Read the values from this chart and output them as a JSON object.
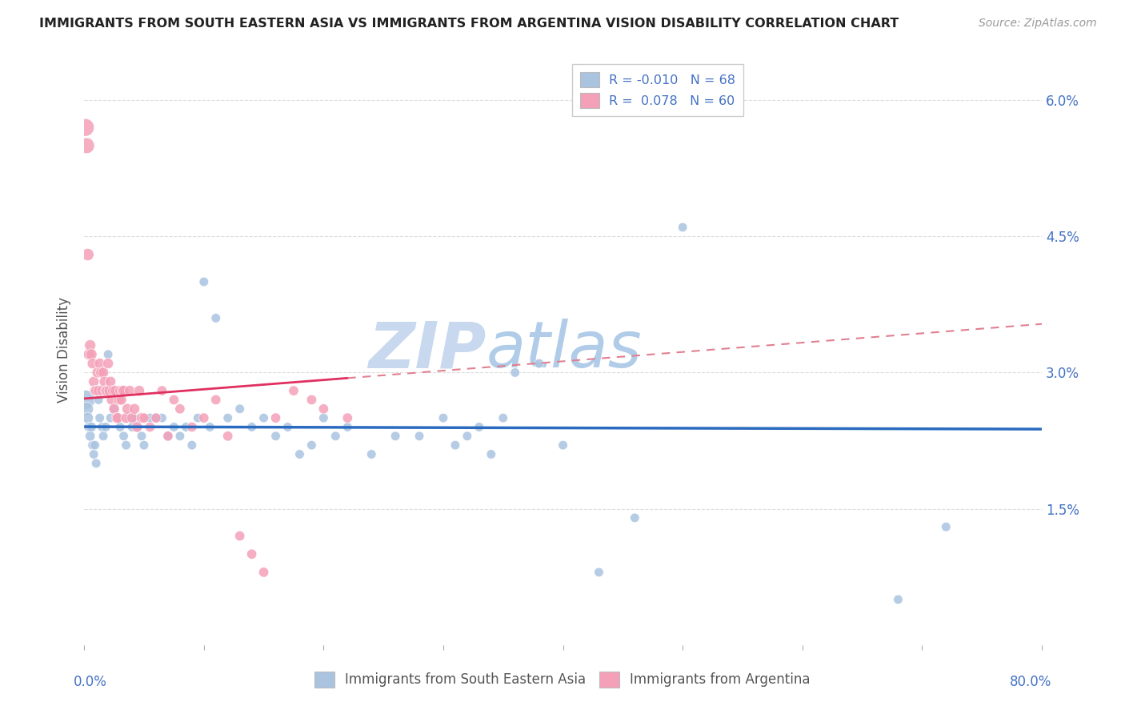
{
  "title": "IMMIGRANTS FROM SOUTH EASTERN ASIA VS IMMIGRANTS FROM ARGENTINA VISION DISABILITY CORRELATION CHART",
  "source": "Source: ZipAtlas.com",
  "ylabel": "Vision Disability",
  "yticks": [
    0.0,
    0.015,
    0.03,
    0.045,
    0.06
  ],
  "ytick_labels": [
    "",
    "1.5%",
    "3.0%",
    "4.5%",
    "6.0%"
  ],
  "xlim": [
    0.0,
    0.8
  ],
  "ylim": [
    0.0,
    0.065
  ],
  "blue_R": -0.01,
  "blue_N": 68,
  "pink_R": 0.078,
  "pink_N": 60,
  "blue_color": "#aac4e0",
  "pink_color": "#f4a0b8",
  "blue_line_color": "#2a6abf",
  "pink_line_color": "#e03060",
  "pink_dash_color": "#e08090",
  "watermark_zip": "ZIP",
  "watermark_atlas": "atlas",
  "watermark_color_zip": "#c8d8ee",
  "watermark_color_atlas": "#b0cce8",
  "grid_color": "#dddddd",
  "background_color": "#ffffff",
  "tick_color": "#4472c4",
  "legend_label_blue": "Immigrants from South Eastern Asia",
  "legend_label_pink": "Immigrants from Argentina",
  "blue_scatter_x": [
    0.001,
    0.002,
    0.003,
    0.004,
    0.005,
    0.006,
    0.007,
    0.008,
    0.009,
    0.01,
    0.012,
    0.013,
    0.015,
    0.016,
    0.018,
    0.02,
    0.022,
    0.025,
    0.028,
    0.03,
    0.033,
    0.035,
    0.038,
    0.04,
    0.042,
    0.045,
    0.048,
    0.05,
    0.055,
    0.06,
    0.065,
    0.07,
    0.075,
    0.08,
    0.085,
    0.09,
    0.095,
    0.1,
    0.105,
    0.11,
    0.12,
    0.13,
    0.14,
    0.15,
    0.16,
    0.17,
    0.18,
    0.19,
    0.2,
    0.21,
    0.22,
    0.24,
    0.26,
    0.28,
    0.3,
    0.31,
    0.32,
    0.33,
    0.34,
    0.35,
    0.36,
    0.38,
    0.4,
    0.43,
    0.46,
    0.5,
    0.68,
    0.72
  ],
  "blue_scatter_y": [
    0.027,
    0.026,
    0.025,
    0.024,
    0.023,
    0.024,
    0.022,
    0.021,
    0.022,
    0.02,
    0.027,
    0.025,
    0.024,
    0.023,
    0.024,
    0.032,
    0.025,
    0.026,
    0.025,
    0.024,
    0.023,
    0.022,
    0.025,
    0.024,
    0.025,
    0.024,
    0.023,
    0.022,
    0.025,
    0.025,
    0.025,
    0.023,
    0.024,
    0.023,
    0.024,
    0.022,
    0.025,
    0.04,
    0.024,
    0.036,
    0.025,
    0.026,
    0.024,
    0.025,
    0.023,
    0.024,
    0.021,
    0.022,
    0.025,
    0.023,
    0.024,
    0.021,
    0.023,
    0.023,
    0.025,
    0.022,
    0.023,
    0.024,
    0.021,
    0.025,
    0.03,
    0.031,
    0.022,
    0.008,
    0.014,
    0.046,
    0.005,
    0.013
  ],
  "blue_scatter_s": [
    300,
    150,
    100,
    80,
    80,
    80,
    70,
    70,
    70,
    70,
    70,
    70,
    70,
    70,
    70,
    70,
    70,
    70,
    70,
    70,
    70,
    70,
    70,
    70,
    70,
    70,
    70,
    70,
    70,
    70,
    70,
    70,
    70,
    70,
    70,
    70,
    70,
    70,
    70,
    70,
    70,
    70,
    70,
    70,
    70,
    70,
    70,
    70,
    70,
    70,
    70,
    70,
    70,
    70,
    70,
    70,
    70,
    70,
    70,
    70,
    70,
    70,
    70,
    70,
    70,
    70,
    70,
    70
  ],
  "pink_scatter_x": [
    0.001,
    0.002,
    0.003,
    0.004,
    0.005,
    0.006,
    0.007,
    0.008,
    0.009,
    0.01,
    0.011,
    0.012,
    0.013,
    0.014,
    0.015,
    0.016,
    0.017,
    0.018,
    0.019,
    0.02,
    0.021,
    0.022,
    0.023,
    0.024,
    0.025,
    0.026,
    0.027,
    0.028,
    0.029,
    0.03,
    0.031,
    0.032,
    0.033,
    0.035,
    0.036,
    0.038,
    0.04,
    0.042,
    0.044,
    0.046,
    0.048,
    0.05,
    0.055,
    0.06,
    0.065,
    0.07,
    0.075,
    0.08,
    0.09,
    0.1,
    0.11,
    0.12,
    0.13,
    0.14,
    0.15,
    0.16,
    0.175,
    0.19,
    0.2,
    0.22
  ],
  "pink_scatter_y": [
    0.057,
    0.055,
    0.043,
    0.032,
    0.033,
    0.032,
    0.031,
    0.029,
    0.028,
    0.028,
    0.03,
    0.028,
    0.031,
    0.03,
    0.028,
    0.03,
    0.029,
    0.028,
    0.028,
    0.031,
    0.028,
    0.029,
    0.027,
    0.028,
    0.026,
    0.028,
    0.025,
    0.025,
    0.027,
    0.028,
    0.027,
    0.028,
    0.028,
    0.025,
    0.026,
    0.028,
    0.025,
    0.026,
    0.024,
    0.028,
    0.025,
    0.025,
    0.024,
    0.025,
    0.028,
    0.023,
    0.027,
    0.026,
    0.024,
    0.025,
    0.027,
    0.023,
    0.012,
    0.01,
    0.008,
    0.025,
    0.028,
    0.027,
    0.026,
    0.025
  ],
  "pink_scatter_s": [
    250,
    200,
    120,
    100,
    100,
    100,
    90,
    90,
    90,
    90,
    90,
    90,
    90,
    90,
    90,
    90,
    90,
    90,
    90,
    90,
    90,
    90,
    90,
    90,
    90,
    90,
    90,
    90,
    90,
    90,
    90,
    90,
    90,
    90,
    90,
    90,
    90,
    90,
    90,
    90,
    90,
    80,
    80,
    80,
    80,
    80,
    80,
    80,
    80,
    80,
    80,
    80,
    80,
    80,
    80,
    80,
    80,
    80,
    80,
    80
  ]
}
